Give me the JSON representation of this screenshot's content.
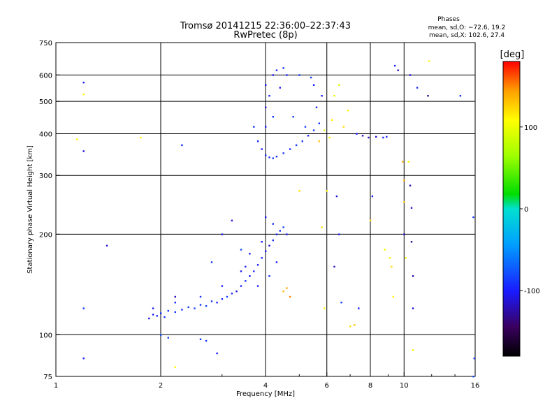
{
  "chart_data": {
    "type": "scatter",
    "title": "Tromsø 20141215 22:36:00–22:37:43",
    "subtitle": "RwPretec (8p)",
    "phases_heading": "Phases",
    "phases_o": "mean, sd,O: −72.6, 19.2",
    "phases_x": "mean, sd,X: 102.6, 27.4",
    "xlabel": "Frequency [MHz]",
    "ylabel": "Stationary phase Virtual Height [km]",
    "xscale": "log",
    "yscale": "log",
    "xlim": [
      1,
      16
    ],
    "ylim": [
      75,
      750
    ],
    "x_ticks": [
      1,
      2,
      4,
      6,
      8,
      10,
      16
    ],
    "x_tick_labels": [
      "1",
      "2",
      "4",
      "6",
      "8",
      "10",
      "16"
    ],
    "y_ticks": [
      75,
      100,
      200,
      300,
      400,
      500,
      600,
      750
    ],
    "y_tick_labels": [
      "75",
      "100",
      "200",
      "300",
      "400",
      "500",
      "600",
      "750"
    ],
    "grid": true,
    "colorbar": {
      "label": "[deg]",
      "range": [
        -180,
        180
      ],
      "ticks": [
        100,
        0,
        -100
      ],
      "tick_labels": [
        "100",
        "0",
        "-100"
      ]
    },
    "points": [
      [
        1.85,
        112,
        -110
      ],
      [
        1.9,
        115,
        -100
      ],
      [
        1.95,
        114,
        -95
      ],
      [
        2.0,
        116,
        -90
      ],
      [
        2.05,
        113,
        -92
      ],
      [
        2.1,
        118,
        -88
      ],
      [
        2.2,
        117,
        -85
      ],
      [
        2.3,
        119,
        -90
      ],
      [
        2.4,
        121,
        -88
      ],
      [
        2.5,
        120,
        -85
      ],
      [
        2.6,
        123,
        -90
      ],
      [
        2.7,
        122,
        -80
      ],
      [
        2.8,
        126,
        -92
      ],
      [
        2.9,
        125,
        -100
      ],
      [
        3.0,
        128,
        -95
      ],
      [
        3.1,
        130,
        -85
      ],
      [
        3.2,
        133,
        -90
      ],
      [
        3.3,
        135,
        -110
      ],
      [
        3.4,
        140,
        -95
      ],
      [
        3.5,
        145,
        -90
      ],
      [
        3.6,
        150,
        -100
      ],
      [
        3.7,
        155,
        -95
      ],
      [
        3.8,
        162,
        -105
      ],
      [
        3.9,
        170,
        -90
      ],
      [
        4.0,
        178,
        -100
      ],
      [
        4.1,
        185,
        -110
      ],
      [
        4.2,
        192,
        -95
      ],
      [
        4.3,
        200,
        -100
      ],
      [
        4.4,
        205,
        -90
      ],
      [
        4.5,
        210,
        -85
      ],
      [
        4.6,
        200,
        -100
      ],
      [
        3.5,
        160,
        -100
      ],
      [
        3.8,
        140,
        -95
      ],
      [
        4.1,
        150,
        -90
      ],
      [
        4.3,
        165,
        -100
      ],
      [
        3.6,
        175,
        -105
      ],
      [
        3.9,
        190,
        -95
      ],
      [
        4.2,
        215,
        -90
      ],
      [
        4.0,
        225,
        -100
      ],
      [
        3.4,
        155,
        -110
      ],
      [
        3.0,
        140,
        -100
      ],
      [
        2.6,
        130,
        -90
      ],
      [
        2.2,
        125,
        -95
      ],
      [
        1.9,
        120,
        -100
      ],
      [
        2.0,
        100,
        -80
      ],
      [
        2.1,
        98,
        -85
      ],
      [
        2.6,
        97,
        -85
      ],
      [
        2.7,
        96,
        -90
      ],
      [
        4.6,
        138,
        140
      ],
      [
        4.5,
        135,
        135
      ],
      [
        4.7,
        130,
        150
      ],
      [
        7.2,
        107,
        130
      ],
      [
        7.0,
        106,
        120
      ],
      [
        3.7,
        420,
        -90
      ],
      [
        3.8,
        380,
        -95
      ],
      [
        3.9,
        360,
        -100
      ],
      [
        4.0,
        345,
        -95
      ],
      [
        4.1,
        340,
        -90
      ],
      [
        4.2,
        338,
        -85
      ],
      [
        4.3,
        342,
        -95
      ],
      [
        4.5,
        350,
        -90
      ],
      [
        4.7,
        360,
        -95
      ],
      [
        4.9,
        370,
        -85
      ],
      [
        5.1,
        380,
        -90
      ],
      [
        5.3,
        395,
        -95
      ],
      [
        5.5,
        410,
        -85
      ],
      [
        5.7,
        430,
        -90
      ],
      [
        4.0,
        420,
        -100
      ],
      [
        4.0,
        480,
        -110
      ],
      [
        4.1,
        520,
        -95
      ],
      [
        4.0,
        560,
        -100
      ],
      [
        4.2,
        600,
        -105
      ],
      [
        4.3,
        620,
        -95
      ],
      [
        4.5,
        630,
        -90
      ],
      [
        4.6,
        600,
        -95
      ],
      [
        4.4,
        550,
        -100
      ],
      [
        4.2,
        450,
        -90
      ],
      [
        4.8,
        450,
        -85
      ],
      [
        5.2,
        420,
        -90
      ],
      [
        5.6,
        480,
        -95
      ],
      [
        5.8,
        520,
        -100
      ],
      [
        5.5,
        560,
        -95
      ],
      [
        5.4,
        590,
        -90
      ],
      [
        5.0,
        600,
        -85
      ],
      [
        6.2,
        440,
        110
      ],
      [
        6.3,
        520,
        100
      ],
      [
        6.5,
        560,
        90
      ],
      [
        6.7,
        420,
        120
      ],
      [
        6.9,
        470,
        110
      ],
      [
        5.9,
        410,
        95
      ],
      [
        6.1,
        390,
        110
      ],
      [
        5.7,
        380,
        130
      ],
      [
        7.3,
        400,
        -100
      ],
      [
        7.6,
        395,
        -110
      ],
      [
        7.9,
        390,
        -120
      ],
      [
        8.3,
        392,
        -110
      ],
      [
        8.7,
        390,
        -100
      ],
      [
        8.9,
        392,
        -95
      ],
      [
        9.4,
        640,
        -100
      ],
      [
        9.6,
        620,
        -120
      ],
      [
        10.4,
        600,
        -110
      ],
      [
        10.9,
        550,
        -95
      ],
      [
        11.7,
        520,
        -130
      ],
      [
        11.8,
        660,
        110
      ],
      [
        14.5,
        520,
        -90
      ],
      [
        15.8,
        225,
        -90
      ],
      [
        15.9,
        85,
        -90
      ],
      [
        15.8,
        75,
        -80
      ],
      [
        9.9,
        330,
        140
      ],
      [
        10.0,
        290,
        140
      ],
      [
        10.0,
        250,
        130
      ],
      [
        10.0,
        200,
        -120
      ],
      [
        10.1,
        170,
        110
      ],
      [
        10.3,
        330,
        100
      ],
      [
        10.4,
        280,
        -120
      ],
      [
        10.5,
        240,
        -110
      ],
      [
        10.5,
        190,
        -130
      ],
      [
        10.6,
        150,
        -120
      ],
      [
        10.6,
        120,
        -110
      ],
      [
        10.6,
        90,
        110
      ],
      [
        9.1,
        170,
        110
      ],
      [
        9.2,
        160,
        120
      ],
      [
        9.3,
        130,
        110
      ],
      [
        8.8,
        180,
        100
      ],
      [
        5.8,
        210,
        120
      ],
      [
        5.9,
        120,
        110
      ],
      [
        6.0,
        270,
        110
      ],
      [
        5.0,
        270,
        120
      ],
      [
        6.4,
        260,
        -110
      ],
      [
        6.5,
        200,
        -100
      ],
      [
        6.3,
        160,
        -120
      ],
      [
        6.6,
        125,
        -90
      ],
      [
        7.4,
        120,
        -100
      ],
      [
        8.0,
        220,
        120
      ],
      [
        8.1,
        260,
        -100
      ],
      [
        1.2,
        570,
        -100
      ],
      [
        1.2,
        525,
        110
      ],
      [
        1.2,
        355,
        -110
      ],
      [
        1.2,
        120,
        -90
      ],
      [
        1.2,
        85,
        -100
      ],
      [
        1.15,
        385,
        110
      ],
      [
        1.4,
        185,
        -110
      ],
      [
        1.75,
        390,
        110
      ],
      [
        2.3,
        370,
        -90
      ],
      [
        2.2,
        130,
        -120
      ],
      [
        2.2,
        80,
        110
      ],
      [
        2.8,
        165,
        -90
      ],
      [
        2.9,
        88,
        -100
      ],
      [
        3.0,
        200,
        -100
      ],
      [
        3.2,
        220,
        -110
      ],
      [
        3.4,
        180,
        -80
      ]
    ]
  }
}
